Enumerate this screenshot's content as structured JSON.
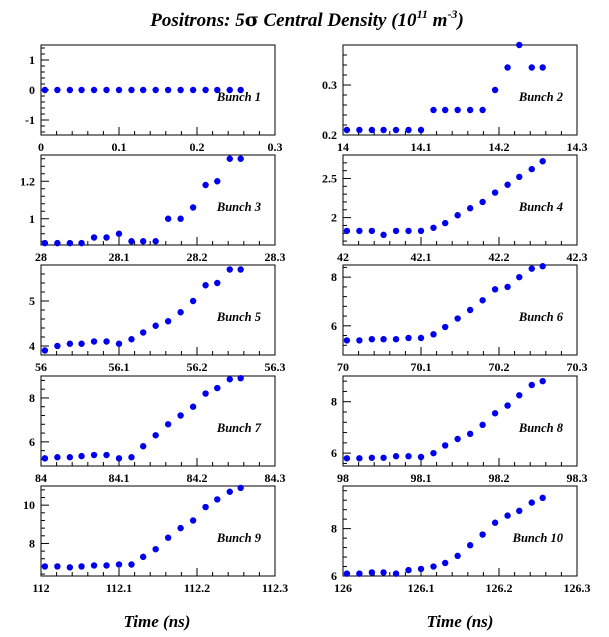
{
  "title": {
    "prefix": "Positrons: 5",
    "sigma": "σ",
    "mid": " Central Density  (10",
    "exp": "11",
    "unit": " m",
    "unit_exp": "-3",
    "suffix": ")"
  },
  "x_axis_title": "Time (ns)",
  "colors": {
    "marker": "#0000ee",
    "axis": "#000000"
  },
  "chart_data": [
    {
      "type": "scatter",
      "label": "Bunch 1",
      "xlim": [
        0,
        0.3
      ],
      "ylim": [
        -1.5,
        1.5
      ],
      "xticks": [
        0,
        0.1,
        0.2,
        0.3
      ],
      "xtick_labels": [
        "0",
        "0.1",
        "0.2",
        "0.3"
      ],
      "yticks": [
        -1,
        0,
        1
      ],
      "ytick_labels": [
        "-1",
        "0",
        "1"
      ],
      "x": [
        0.005,
        0.021,
        0.037,
        0.052,
        0.068,
        0.084,
        0.1,
        0.116,
        0.131,
        0.147,
        0.163,
        0.179,
        0.195,
        0.211,
        0.226,
        0.242,
        0.256
      ],
      "y": [
        0,
        0,
        0,
        0,
        0,
        0,
        0,
        0,
        0,
        0,
        0,
        0,
        0,
        0,
        0,
        0,
        0
      ]
    },
    {
      "type": "scatter",
      "label": "Bunch 2",
      "xlim": [
        14,
        14.3
      ],
      "ylim": [
        0.2,
        0.38
      ],
      "xticks": [
        14,
        14.1,
        14.2,
        14.3
      ],
      "xtick_labels": [
        "14",
        "14.1",
        "14.2",
        "14.3"
      ],
      "yticks": [
        0.2,
        0.3
      ],
      "ytick_labels": [
        "0.2",
        "0.3"
      ],
      "x": [
        14.005,
        14.021,
        14.037,
        14.052,
        14.068,
        14.084,
        14.1,
        14.116,
        14.131,
        14.147,
        14.163,
        14.179,
        14.195,
        14.211,
        14.226,
        14.242,
        14.256
      ],
      "y": [
        0.21,
        0.21,
        0.21,
        0.21,
        0.21,
        0.21,
        0.21,
        0.25,
        0.25,
        0.25,
        0.25,
        0.25,
        0.29,
        0.335,
        0.38,
        0.335,
        0.335
      ]
    },
    {
      "type": "scatter",
      "label": "Bunch 3",
      "xlim": [
        28,
        28.3
      ],
      "ylim": [
        0.86,
        1.34
      ],
      "xticks": [
        28,
        28.1,
        28.2,
        28.3
      ],
      "xtick_labels": [
        "28",
        "28.1",
        "28.2",
        "28.3"
      ],
      "yticks": [
        1,
        1.2
      ],
      "ytick_labels": [
        "1",
        "1.2"
      ],
      "x": [
        28.005,
        28.021,
        28.037,
        28.052,
        28.068,
        28.084,
        28.1,
        28.116,
        28.131,
        28.147,
        28.163,
        28.179,
        28.195,
        28.211,
        28.226,
        28.242,
        28.256
      ],
      "y": [
        0.87,
        0.87,
        0.87,
        0.87,
        0.9,
        0.9,
        0.92,
        0.88,
        0.88,
        0.88,
        1.0,
        1.0,
        1.06,
        1.18,
        1.2,
        1.32,
        1.32
      ]
    },
    {
      "type": "scatter",
      "label": "Bunch 4",
      "xlim": [
        42,
        42.3
      ],
      "ylim": [
        1.65,
        2.8
      ],
      "xticks": [
        42,
        42.1,
        42.2,
        42.3
      ],
      "xtick_labels": [
        "42",
        "42.1",
        "42.2",
        "42.3"
      ],
      "yticks": [
        2,
        2.5
      ],
      "ytick_labels": [
        "2",
        "2.5"
      ],
      "x": [
        42.005,
        42.021,
        42.037,
        42.052,
        42.068,
        42.084,
        42.1,
        42.116,
        42.131,
        42.147,
        42.163,
        42.179,
        42.195,
        42.211,
        42.226,
        42.242,
        42.256
      ],
      "y": [
        1.83,
        1.83,
        1.83,
        1.78,
        1.83,
        1.83,
        1.83,
        1.87,
        1.93,
        2.03,
        2.12,
        2.2,
        2.32,
        2.42,
        2.52,
        2.62,
        2.72
      ]
    },
    {
      "type": "scatter",
      "label": "Bunch 5",
      "xlim": [
        56,
        56.3
      ],
      "ylim": [
        3.8,
        5.8
      ],
      "xticks": [
        56,
        56.1,
        56.2,
        56.3
      ],
      "xtick_labels": [
        "56",
        "56.1",
        "56.2",
        "56.3"
      ],
      "yticks": [
        4,
        5
      ],
      "ytick_labels": [
        "4",
        "5"
      ],
      "x": [
        56.005,
        56.021,
        56.037,
        56.052,
        56.068,
        56.084,
        56.1,
        56.116,
        56.131,
        56.147,
        56.163,
        56.179,
        56.195,
        56.211,
        56.226,
        56.242,
        56.256
      ],
      "y": [
        3.9,
        4.0,
        4.05,
        4.05,
        4.1,
        4.1,
        4.05,
        4.15,
        4.3,
        4.45,
        4.55,
        4.75,
        5.0,
        5.35,
        5.4,
        5.7,
        5.7
      ]
    },
    {
      "type": "scatter",
      "label": "Bunch 6",
      "xlim": [
        70,
        70.3
      ],
      "ylim": [
        4.8,
        8.5
      ],
      "xticks": [
        70,
        70.1,
        70.2,
        70.3
      ],
      "xtick_labels": [
        "70",
        "70.1",
        "70.2",
        "70.3"
      ],
      "yticks": [
        6,
        8
      ],
      "ytick_labels": [
        "6",
        "8"
      ],
      "x": [
        70.005,
        70.021,
        70.037,
        70.052,
        70.068,
        70.084,
        70.1,
        70.116,
        70.131,
        70.147,
        70.163,
        70.179,
        70.195,
        70.211,
        70.226,
        70.242,
        70.256
      ],
      "y": [
        5.4,
        5.4,
        5.45,
        5.45,
        5.45,
        5.5,
        5.5,
        5.65,
        5.95,
        6.3,
        6.65,
        7.05,
        7.5,
        7.6,
        8.0,
        8.35,
        8.45
      ]
    },
    {
      "type": "scatter",
      "label": "Bunch 7",
      "xlim": [
        84,
        84.3
      ],
      "ylim": [
        4.9,
        9.0
      ],
      "xticks": [
        84,
        84.1,
        84.2,
        84.3
      ],
      "xtick_labels": [
        "84",
        "84.1",
        "84.2",
        "84.3"
      ],
      "yticks": [
        6,
        8
      ],
      "ytick_labels": [
        "6",
        "8"
      ],
      "x": [
        84.005,
        84.021,
        84.037,
        84.052,
        84.068,
        84.084,
        84.1,
        84.116,
        84.131,
        84.147,
        84.163,
        84.179,
        84.195,
        84.211,
        84.226,
        84.242,
        84.256
      ],
      "y": [
        5.25,
        5.3,
        5.3,
        5.35,
        5.4,
        5.4,
        5.25,
        5.3,
        5.8,
        6.3,
        6.8,
        7.2,
        7.6,
        8.2,
        8.45,
        8.85,
        8.9
      ]
    },
    {
      "type": "scatter",
      "label": "Bunch 8",
      "xlim": [
        98,
        98.3
      ],
      "ylim": [
        5.5,
        9.0
      ],
      "xticks": [
        98,
        98.1,
        98.2,
        98.3
      ],
      "xtick_labels": [
        "98",
        "98.1",
        "98.2",
        "98.3"
      ],
      "yticks": [
        6,
        8
      ],
      "ytick_labels": [
        "6",
        "8"
      ],
      "x": [
        98.005,
        98.021,
        98.037,
        98.052,
        98.068,
        98.084,
        98.1,
        98.116,
        98.131,
        98.147,
        98.163,
        98.179,
        98.195,
        98.211,
        98.226,
        98.242,
        98.256
      ],
      "y": [
        5.8,
        5.8,
        5.82,
        5.82,
        5.88,
        5.88,
        5.85,
        6.0,
        6.3,
        6.55,
        6.75,
        7.1,
        7.55,
        7.85,
        8.25,
        8.65,
        8.8
      ]
    },
    {
      "type": "scatter",
      "label": "Bunch 9",
      "xlim": [
        112,
        112.3
      ],
      "ylim": [
        6.3,
        11.0
      ],
      "xticks": [
        112,
        112.1,
        112.2,
        112.3
      ],
      "xtick_labels": [
        "112",
        "112.1",
        "112.2",
        "112.3"
      ],
      "yticks": [
        8,
        10
      ],
      "ytick_labels": [
        "8",
        "10"
      ],
      "x": [
        112.005,
        112.021,
        112.037,
        112.052,
        112.068,
        112.084,
        112.1,
        112.116,
        112.131,
        112.147,
        112.163,
        112.179,
        112.195,
        112.211,
        112.226,
        112.242,
        112.256
      ],
      "y": [
        6.8,
        6.8,
        6.75,
        6.8,
        6.85,
        6.85,
        6.9,
        6.9,
        7.3,
        7.7,
        8.3,
        8.8,
        9.2,
        9.9,
        10.3,
        10.7,
        10.9
      ]
    },
    {
      "type": "scatter",
      "label": "Bunch 10",
      "xlim": [
        126,
        126.3
      ],
      "ylim": [
        6.0,
        9.8
      ],
      "xticks": [
        126,
        126.1,
        126.2,
        126.3
      ],
      "xtick_labels": [
        "126",
        "126.1",
        "126.2",
        "126.3"
      ],
      "yticks": [
        6,
        8
      ],
      "ytick_labels": [
        "6",
        "8"
      ],
      "x": [
        126.005,
        126.021,
        126.037,
        126.052,
        126.068,
        126.084,
        126.1,
        126.116,
        126.131,
        126.147,
        126.163,
        126.179,
        126.195,
        126.211,
        126.226,
        126.242,
        126.256
      ],
      "y": [
        6.1,
        6.1,
        6.15,
        6.15,
        6.1,
        6.25,
        6.3,
        6.4,
        6.55,
        6.85,
        7.3,
        7.75,
        8.25,
        8.55,
        8.75,
        9.1,
        9.3
      ]
    }
  ]
}
